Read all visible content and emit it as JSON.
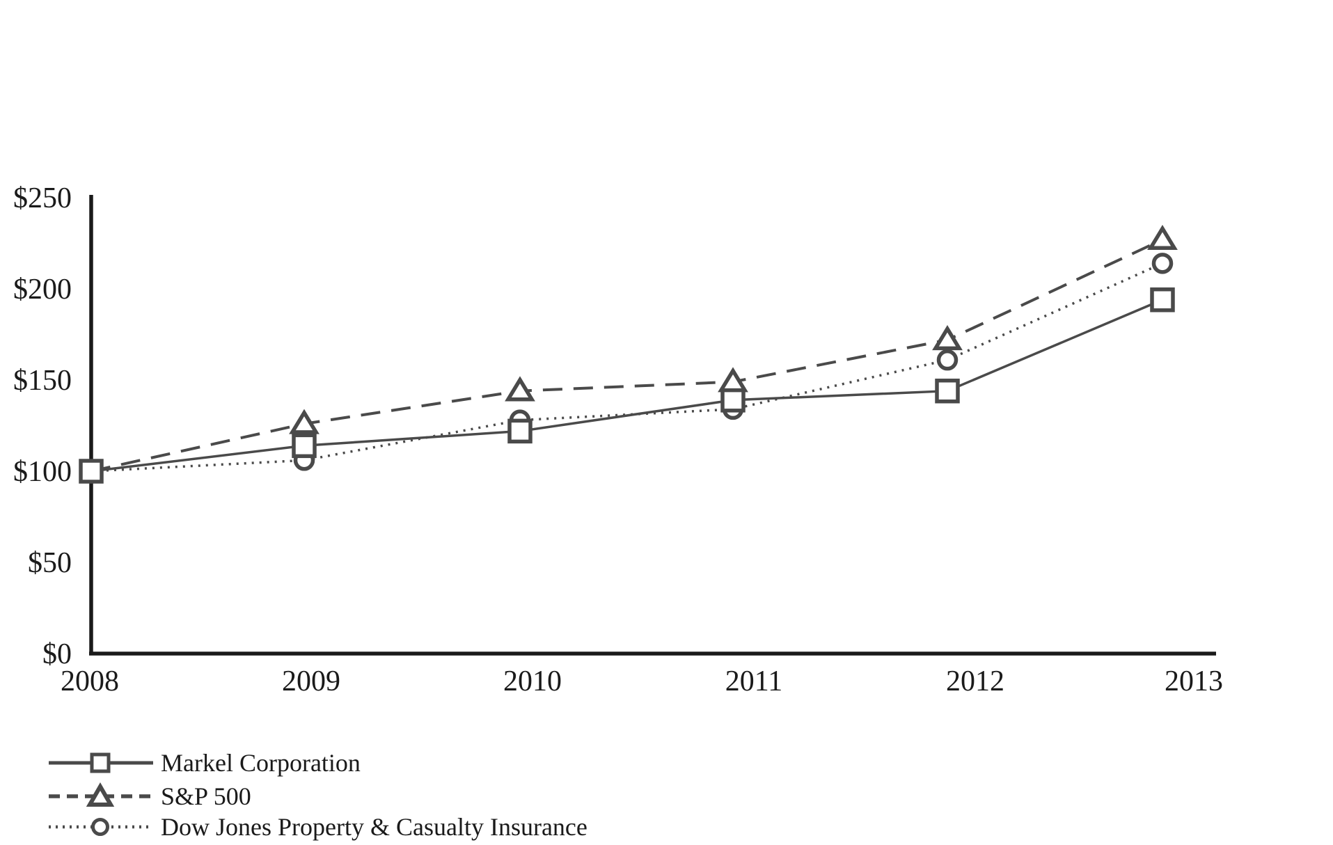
{
  "chart_data": {
    "type": "line",
    "title": "",
    "categories": [
      "2008",
      "2009",
      "2010",
      "2011",
      "2012",
      "2013"
    ],
    "xlabel": "",
    "ylabel": "",
    "ylim": [
      0,
      250
    ],
    "y_tick_labels": [
      "$250",
      "$200",
      "$150",
      "$100",
      "$50",
      "$0"
    ],
    "y_tick_values": [
      250,
      200,
      150,
      100,
      50,
      0
    ],
    "grid": false,
    "legend_position": "bottom-left",
    "colors": {
      "series": "#4a4a4a",
      "axis": "#1a1a1a",
      "text": "#1a1a1a",
      "marker_fill": "#ffffff",
      "background": "#ffffff"
    },
    "series": [
      {
        "name": "Markel Corporation",
        "marker": "square",
        "line_style": "solid",
        "show_first_marker": true,
        "values": [
          100,
          114,
          122,
          139,
          144,
          194
        ]
      },
      {
        "name": "S&P 500",
        "marker": "triangle",
        "line_style": "dashed",
        "show_first_marker": false,
        "values": [
          100,
          126,
          144,
          149,
          172,
          227
        ]
      },
      {
        "name": "Dow Jones Property & Casualty Insurance",
        "marker": "circle",
        "line_style": "dotted",
        "show_first_marker": false,
        "values": [
          100,
          106,
          128,
          134,
          161,
          214
        ]
      }
    ]
  }
}
